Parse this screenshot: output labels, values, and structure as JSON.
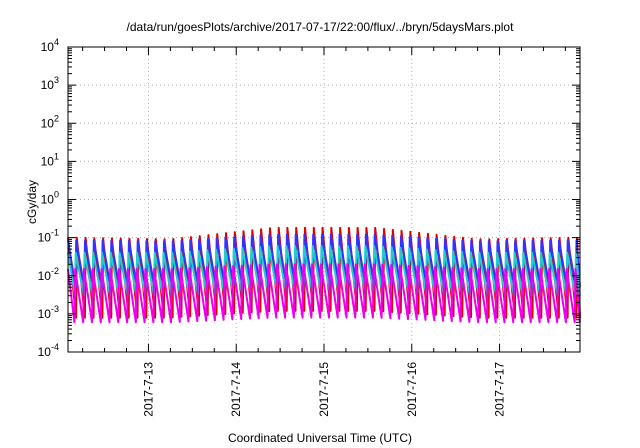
{
  "chart_data": {
    "type": "line",
    "title": "/data/run/goesPlots/archive/2017-07-17/22:00/flux/../bryn/5daysMars.plot",
    "xlabel": "Coordinated Universal Time (UTC)",
    "ylabel": "cGy/day",
    "yscale": "log",
    "ylim": [
      0.0001,
      10000
    ],
    "xlim": [
      "2017-07-12 02:00",
      "2017-07-17 22:00"
    ],
    "x_ticks": [
      "2017-7-13",
      "2017-7-14",
      "2017-7-15",
      "2017-7-16",
      "2017-7-17"
    ],
    "y_ticks": [
      {
        "base": "10",
        "exp": "-4"
      },
      {
        "base": "10",
        "exp": "-3"
      },
      {
        "base": "10",
        "exp": "-2"
      },
      {
        "base": "10",
        "exp": "-1"
      },
      {
        "base": "10",
        "exp": "0"
      },
      {
        "base": "10",
        "exp": "1"
      },
      {
        "base": "10",
        "exp": "2"
      },
      {
        "base": "10",
        "exp": "3"
      },
      {
        "base": "10",
        "exp": "4"
      }
    ],
    "grid": true,
    "legend": "none",
    "sawtooth_period_hours": 2.4,
    "series": [
      {
        "color": "#dd0000",
        "peak": [
          0.1,
          0.09,
          0.18,
          0.18,
          0.09,
          0.1
        ],
        "trough": [
          0.0008,
          0.0008,
          0.0012,
          0.0012,
          0.0008,
          0.0008
        ]
      },
      {
        "color": "#3333ff",
        "peak": [
          0.085,
          0.08,
          0.12,
          0.12,
          0.08,
          0.085
        ],
        "trough": [
          0.005,
          0.005,
          0.006,
          0.006,
          0.005,
          0.005
        ]
      },
      {
        "color": "#22cccc",
        "peak": [
          0.04,
          0.04,
          0.06,
          0.06,
          0.04,
          0.04
        ],
        "trough": [
          0.003,
          0.003,
          0.004,
          0.004,
          0.003,
          0.003
        ]
      },
      {
        "color": "#ee00ee",
        "peak": [
          0.015,
          0.015,
          0.02,
          0.02,
          0.015,
          0.015
        ],
        "trough": [
          0.0006,
          0.0006,
          0.0008,
          0.0008,
          0.0006,
          0.0006
        ]
      }
    ]
  }
}
